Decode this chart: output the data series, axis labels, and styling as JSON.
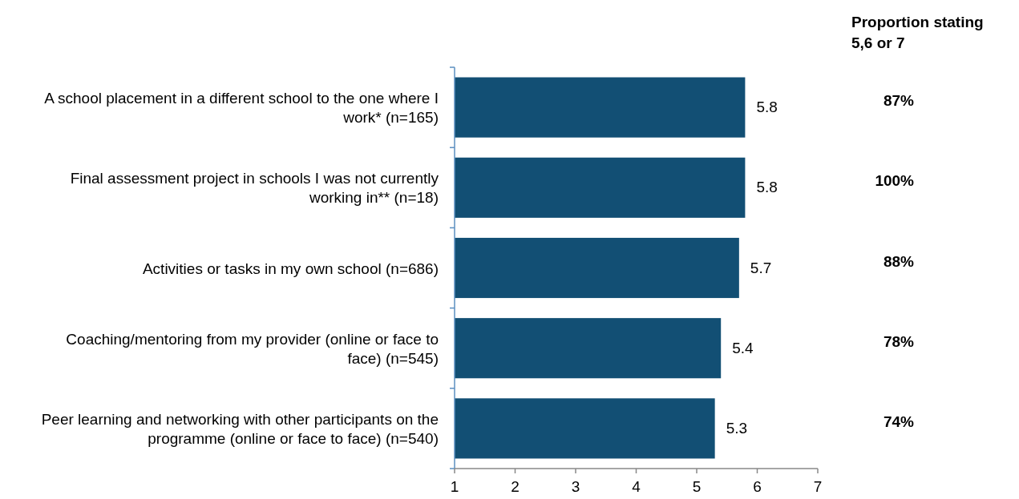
{
  "chart_data": {
    "type": "bar",
    "orientation": "horizontal",
    "categories": [
      "A school placement in a different school to the one where I work* (n=165)",
      "Final assessment project in schools I was not currently working in** (n=18)",
      "Activities or tasks in my own school (n=686)",
      "Coaching/mentoring from my provider (online or face to face) (n=545)",
      "Peer learning and networking with other participants on the programme (online or face to face) (n=540)"
    ],
    "values": [
      5.8,
      5.8,
      5.7,
      5.4,
      5.3
    ],
    "color": "#124f74",
    "xlim": [
      1,
      7
    ],
    "xticks": [
      1,
      2,
      3,
      4,
      5,
      6,
      7
    ],
    "data_labels": true,
    "annotations": [
      "Proportion stating 5,6 or 7",
      "87%",
      "100%",
      "88%",
      "78%",
      "74%"
    ]
  }
}
